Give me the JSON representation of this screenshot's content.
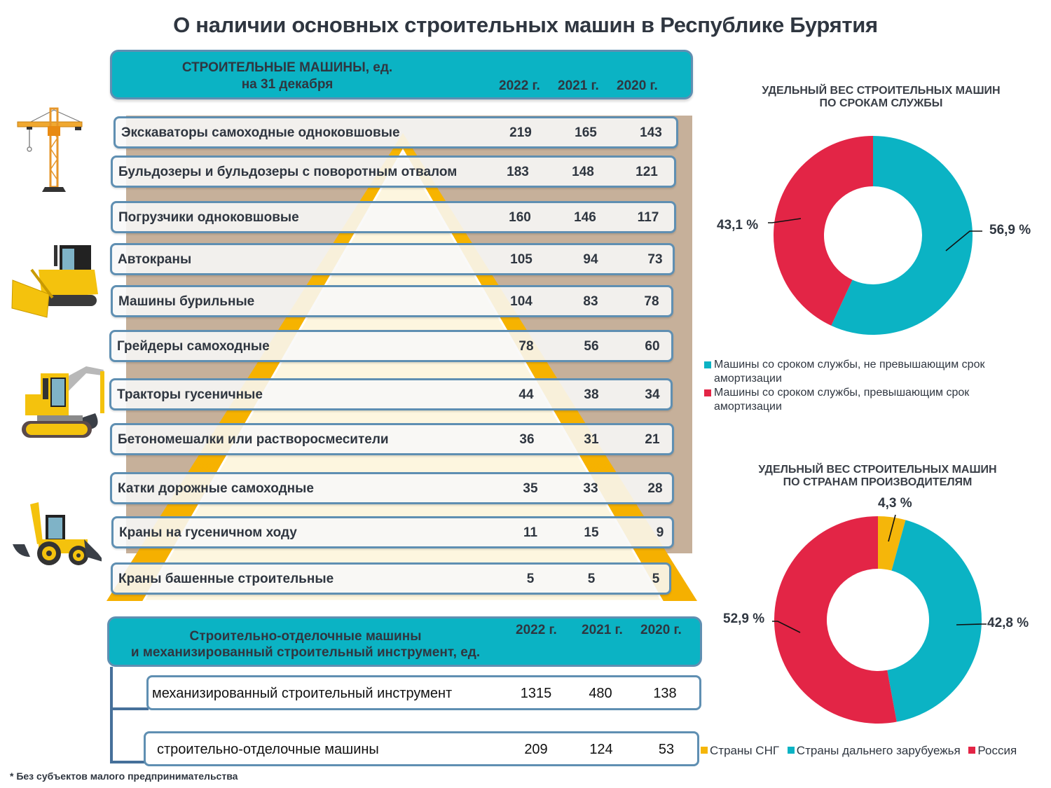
{
  "title": "О наличии основных строительных машин в Республике Бурятия",
  "main_table": {
    "title_line1": "СТРОИТЕЛЬНЫЕ МАШИНЫ, ед.",
    "title_line2": "на 31 декабря",
    "years": [
      "2022 г.",
      "2021 г.",
      "2020 г."
    ],
    "rows": [
      {
        "label": "Экскаваторы самоходные одноковшовые",
        "values": [
          "219",
          "165",
          "143"
        ]
      },
      {
        "label": "Бульдозеры  и бульдозеры с поворотным отвалом",
        "values": [
          "183",
          "148",
          "121"
        ]
      },
      {
        "label": "Погрузчики одноковшовые",
        "values": [
          "160",
          "146",
          "117"
        ]
      },
      {
        "label": "Автокраны",
        "values": [
          "105",
          "94",
          "73"
        ]
      },
      {
        "label": "Машины бурильные",
        "values": [
          "104",
          "83",
          "78"
        ]
      },
      {
        "label": "Грейдеры самоходные",
        "values": [
          "78",
          "56",
          "60"
        ]
      },
      {
        "label": "Тракторы гусеничные",
        "values": [
          "44",
          "38",
          "34"
        ]
      },
      {
        "label": "Бетономешалки или растворосмесители",
        "values": [
          "36",
          "31",
          "21"
        ]
      },
      {
        "label": "Катки дорожные самоходные",
        "values": [
          "35",
          "33",
          "28"
        ]
      },
      {
        "label": "Краны на гусеничном ходу",
        "values": [
          "11",
          "15",
          "9"
        ]
      },
      {
        "label": "Краны башенные строительные",
        "values": [
          "5",
          "5",
          "5"
        ]
      }
    ]
  },
  "second_table": {
    "title_line1": "Строительно-отделочные машины",
    "title_line2": "и механизированный строительный инструмент, ед.",
    "years": [
      "2022 г.",
      "2021 г.",
      "2020 г."
    ],
    "rows": [
      {
        "label": "механизированный строительный инструмент",
        "values": [
          "1315",
          "480",
          "138"
        ]
      },
      {
        "label": "строительно-отделочные машины",
        "values": [
          "209",
          "124",
          "53"
        ]
      }
    ]
  },
  "footnote": "* Без субъектов малого предпринимательства",
  "illustrations": [
    "tower-crane-icon",
    "bulldozer-icon",
    "excavator-icon",
    "backhoe-loader-icon"
  ],
  "colors": {
    "teal": "#0bb3c4",
    "red": "#e32546",
    "yellow": "#f5b60a",
    "beige": "#c6b09a",
    "border": "#5f8fb2"
  },
  "chart_data": [
    {
      "type": "pie",
      "title": "УДЕЛЬНЫЙ ВЕС  СТРОИТЕЛЬНЫХ МАШИН ПО СРОКАМ СЛУЖБЫ",
      "title_line1": "УДЕЛЬНЫЙ ВЕС  СТРОИТЕЛЬНЫХ МАШИН",
      "title_line2": "ПО СРОКАМ СЛУЖБЫ",
      "donut": true,
      "legend_position": "bottom",
      "slices": [
        {
          "name": "Машины со сроком службы, не превышающим срок амортизации",
          "value": 56.9,
          "label": "56,9 %",
          "color": "#0bb3c4"
        },
        {
          "name": "Машины со сроком службы, превышающим срок амортизации",
          "value": 43.1,
          "label": "43,1 %",
          "color": "#e32546"
        }
      ]
    },
    {
      "type": "pie",
      "title": "УДЕЛЬНЫЙ ВЕС СТРОИТЕЛЬНЫХ МАШИН ПО СТРАНАМ ПРОИЗВОДИТЕЛЯМ",
      "title_line1": "УДЕЛЬНЫЙ ВЕС СТРОИТЕЛЬНЫХ МАШИН",
      "title_line2": "ПО СТРАНАМ ПРОИЗВОДИТЕЛЯМ",
      "donut": true,
      "legend_position": "bottom",
      "slices": [
        {
          "name": "Страны СНГ",
          "value": 4.3,
          "label": "4,3 %",
          "color": "#f5b60a"
        },
        {
          "name": "Страны дальнего зарубуежья",
          "value": 42.8,
          "label": "42,8 %",
          "color": "#0bb3c4"
        },
        {
          "name": "Россия",
          "value": 52.9,
          "label": "52,9 %",
          "color": "#e32546"
        }
      ]
    }
  ]
}
